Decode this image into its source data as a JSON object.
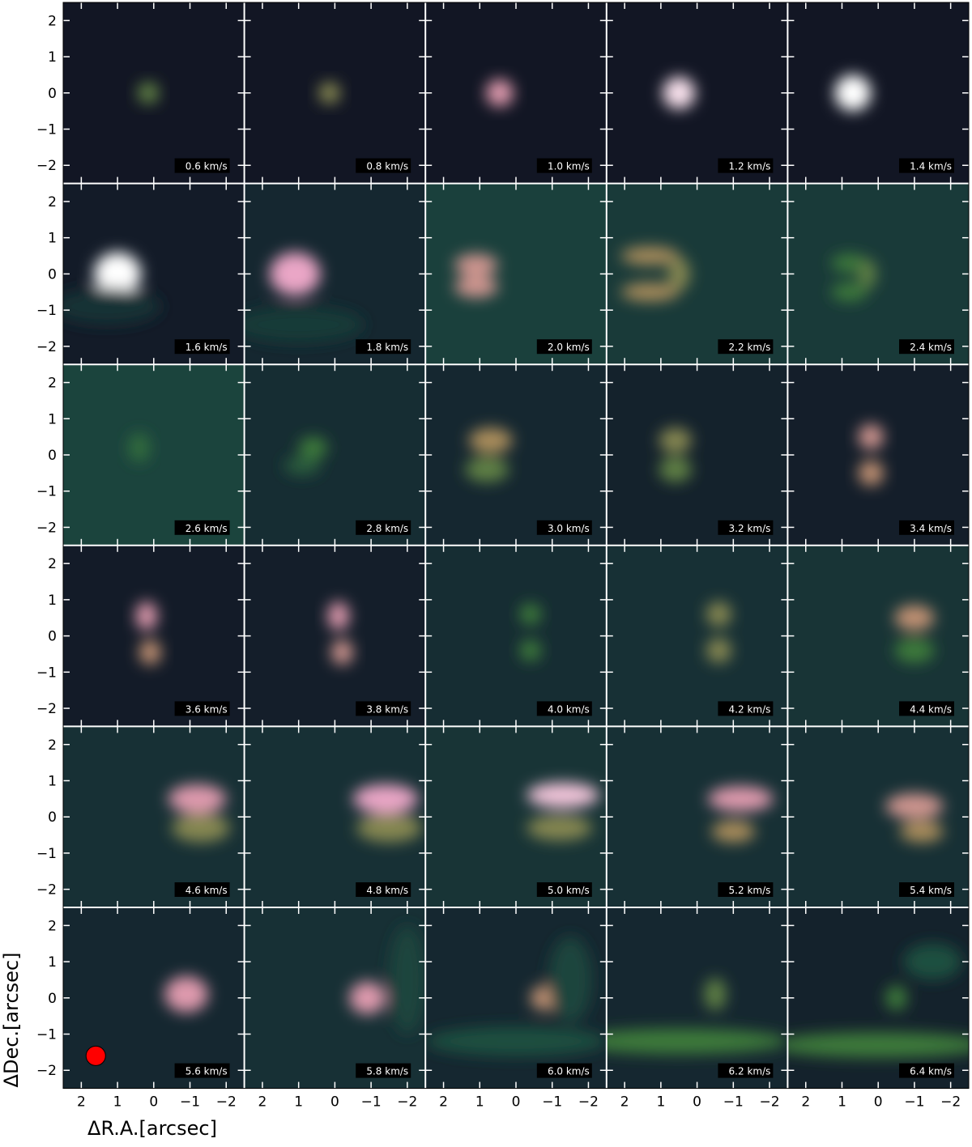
{
  "figure": {
    "xlabel": "ΔR.A.[arcsec]",
    "ylabel": "ΔDec.[arcsec]",
    "x_ticks": [
      "2",
      "1",
      "0",
      "−1",
      "−2"
    ],
    "y_ticks": [
      "2",
      "1",
      "0",
      "−1",
      "−2"
    ],
    "beam_color": "#ff0000",
    "colormap": [
      "#100d1e",
      "#162a32",
      "#1c4a40",
      "#3c7a3a",
      "#b89060",
      "#e89cc0",
      "#ffffff"
    ]
  },
  "panels": [
    {
      "label": "0.6 km/s",
      "bg": 0.05,
      "blobs": [
        [
          0.15,
          0.0,
          0.3,
          0.3,
          0.55
        ]
      ]
    },
    {
      "label": "0.8 km/s",
      "bg": 0.05,
      "blobs": [
        [
          0.15,
          0.0,
          0.3,
          0.3,
          0.6
        ]
      ]
    },
    {
      "label": "1.0 km/s",
      "bg": 0.05,
      "blobs": [
        [
          0.45,
          0.0,
          0.38,
          0.38,
          0.8
        ]
      ]
    },
    {
      "label": "1.2 km/s",
      "bg": 0.05,
      "blobs": [
        [
          0.5,
          0.0,
          0.45,
          0.45,
          0.95
        ]
      ]
    },
    {
      "label": "1.4 km/s",
      "bg": 0.05,
      "blobs": [
        [
          0.7,
          0.0,
          0.5,
          0.5,
          1.0
        ]
      ]
    },
    {
      "label": "1.6 km/s",
      "bg": 0.08,
      "blobs": [
        [
          1.0,
          0.0,
          0.65,
          0.6,
          1.0
        ],
        [
          1.3,
          -0.9,
          1.5,
          0.5,
          0.2
        ]
      ]
    },
    {
      "label": "1.8 km/s",
      "bg": 0.15,
      "blobs": [
        [
          1.1,
          0.0,
          0.7,
          0.6,
          0.85
        ],
        [
          1.0,
          -1.4,
          1.8,
          0.5,
          0.25
        ]
      ]
    },
    {
      "label": "2.0 km/s",
      "bg": 0.28,
      "blobs": [
        [
          1.1,
          0.25,
          0.6,
          0.3,
          0.75
        ],
        [
          1.1,
          -0.35,
          0.6,
          0.3,
          0.75
        ]
      ]
    },
    {
      "label": "2.2 km/s",
      "bg": 0.25,
      "blobs": [
        [
          1.3,
          0.5,
          0.8,
          0.25,
          0.65
        ],
        [
          1.3,
          -0.5,
          0.8,
          0.25,
          0.65
        ],
        [
          0.5,
          0.0,
          0.3,
          0.45,
          0.6
        ]
      ]
    },
    {
      "label": "2.4 km/s",
      "bg": 0.25,
      "blobs": [
        [
          0.8,
          0.3,
          0.5,
          0.25,
          0.5
        ],
        [
          0.8,
          -0.5,
          0.5,
          0.25,
          0.5
        ],
        [
          0.3,
          0.0,
          0.25,
          0.4,
          0.55
        ]
      ]
    },
    {
      "label": "2.6 km/s",
      "bg": 0.3,
      "blobs": [
        [
          0.4,
          0.2,
          0.3,
          0.4,
          0.45
        ]
      ]
    },
    {
      "label": "2.8 km/s",
      "bg": 0.18,
      "blobs": [
        [
          0.6,
          0.2,
          0.4,
          0.3,
          0.5
        ],
        [
          0.9,
          -0.3,
          0.5,
          0.25,
          0.4
        ]
      ]
    },
    {
      "label": "3.0 km/s",
      "bg": 0.15,
      "blobs": [
        [
          0.7,
          0.4,
          0.6,
          0.35,
          0.65
        ],
        [
          0.8,
          -0.4,
          0.6,
          0.35,
          0.55
        ]
      ]
    },
    {
      "label": "3.2 km/s",
      "bg": 0.12,
      "blobs": [
        [
          0.6,
          0.4,
          0.45,
          0.35,
          0.6
        ],
        [
          0.6,
          -0.4,
          0.45,
          0.35,
          0.55
        ]
      ]
    },
    {
      "label": "3.4 km/s",
      "bg": 0.1,
      "blobs": [
        [
          0.2,
          0.5,
          0.35,
          0.35,
          0.75
        ],
        [
          0.2,
          -0.5,
          0.35,
          0.35,
          0.7
        ]
      ]
    },
    {
      "label": "3.6 km/s",
      "bg": 0.08,
      "blobs": [
        [
          0.2,
          0.55,
          0.3,
          0.4,
          0.8
        ],
        [
          0.1,
          -0.45,
          0.3,
          0.35,
          0.7
        ]
      ]
    },
    {
      "label": "3.8 km/s",
      "bg": 0.1,
      "blobs": [
        [
          -0.1,
          0.55,
          0.3,
          0.4,
          0.8
        ],
        [
          -0.2,
          -0.45,
          0.3,
          0.35,
          0.75
        ]
      ]
    },
    {
      "label": "4.0 km/s",
      "bg": 0.18,
      "blobs": [
        [
          -0.4,
          0.6,
          0.3,
          0.3,
          0.5
        ],
        [
          -0.4,
          -0.4,
          0.3,
          0.3,
          0.5
        ]
      ]
    },
    {
      "label": "4.2 km/s",
      "bg": 0.2,
      "blobs": [
        [
          -0.6,
          0.6,
          0.35,
          0.35,
          0.6
        ],
        [
          -0.6,
          -0.4,
          0.35,
          0.35,
          0.6
        ]
      ]
    },
    {
      "label": "4.4 km/s",
      "bg": 0.22,
      "blobs": [
        [
          -1.0,
          0.5,
          0.55,
          0.35,
          0.7
        ],
        [
          -1.0,
          -0.4,
          0.55,
          0.35,
          0.5
        ]
      ]
    },
    {
      "label": "4.6 km/s",
      "bg": 0.2,
      "blobs": [
        [
          -1.2,
          0.5,
          0.8,
          0.4,
          0.8
        ],
        [
          -1.3,
          -0.3,
          0.8,
          0.4,
          0.6
        ]
      ]
    },
    {
      "label": "4.8 km/s",
      "bg": 0.2,
      "blobs": [
        [
          -1.4,
          0.5,
          0.9,
          0.4,
          0.85
        ],
        [
          -1.5,
          -0.3,
          0.9,
          0.4,
          0.6
        ]
      ]
    },
    {
      "label": "5.0 km/s",
      "bg": 0.22,
      "blobs": [
        [
          -1.3,
          0.6,
          1.0,
          0.35,
          0.9
        ],
        [
          -1.2,
          -0.3,
          0.9,
          0.35,
          0.6
        ]
      ]
    },
    {
      "label": "5.2 km/s",
      "bg": 0.2,
      "blobs": [
        [
          -1.2,
          0.5,
          0.9,
          0.35,
          0.8
        ],
        [
          -1.0,
          -0.4,
          0.6,
          0.3,
          0.65
        ]
      ]
    },
    {
      "label": "5.4 km/s",
      "bg": 0.2,
      "blobs": [
        [
          -1.0,
          0.3,
          0.8,
          0.35,
          0.75
        ],
        [
          -1.2,
          -0.4,
          0.6,
          0.3,
          0.65
        ]
      ]
    },
    {
      "label": "5.6 km/s",
      "bg": 0.15,
      "blobs": [
        [
          -0.9,
          0.1,
          0.6,
          0.5,
          0.8
        ]
      ]
    },
    {
      "label": "5.8 km/s",
      "bg": 0.2,
      "blobs": [
        [
          -0.9,
          0.0,
          0.5,
          0.45,
          0.8
        ],
        [
          -2.0,
          0.5,
          0.5,
          1.5,
          0.3
        ]
      ]
    },
    {
      "label": "6.0 km/s",
      "bg": 0.15,
      "blobs": [
        [
          -0.8,
          0.0,
          0.4,
          0.35,
          0.7
        ],
        [
          0.0,
          -1.2,
          2.5,
          0.4,
          0.35
        ],
        [
          -1.5,
          0.5,
          0.6,
          1.2,
          0.3
        ]
      ]
    },
    {
      "label": "6.2 km/s",
      "bg": 0.15,
      "blobs": [
        [
          -0.5,
          0.1,
          0.3,
          0.45,
          0.55
        ],
        [
          0.5,
          -1.2,
          3.0,
          0.35,
          0.5
        ]
      ]
    },
    {
      "label": "6.4 km/s",
      "bg": 0.12,
      "blobs": [
        [
          -0.5,
          0.0,
          0.3,
          0.35,
          0.5
        ],
        [
          0.0,
          -1.3,
          3.0,
          0.35,
          0.5
        ],
        [
          -1.5,
          1.0,
          0.8,
          0.5,
          0.35
        ]
      ]
    }
  ]
}
